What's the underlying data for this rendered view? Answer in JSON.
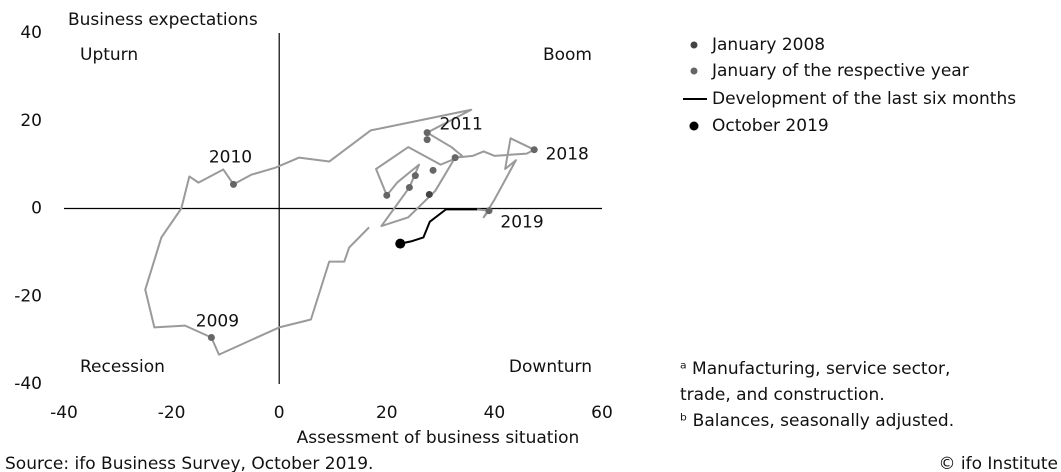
{
  "chart_data": {
    "type": "scatter",
    "title": "Business expectations",
    "xlabel": "Assessment of business situation",
    "xlim": [
      -40,
      60
    ],
    "xticks": [
      -40,
      -20,
      0,
      20,
      40,
      60
    ],
    "ylim": [
      -40,
      40
    ],
    "yticks": [
      -40,
      -20,
      0,
      20,
      40
    ],
    "quadrants": [
      "Upturn",
      "Boom",
      "Recession",
      "Downturn"
    ],
    "trace": {
      "color": "#9a9a9a",
      "x": [
        16.7,
        13,
        12.1,
        9.3,
        5.9,
        0,
        -11.2,
        -12.6,
        -17.5,
        -23.2,
        -24.9,
        -21.9,
        -18.2,
        -16.7,
        -15,
        -10.4,
        -8.5,
        -5.2,
        -0.7,
        3.7,
        9.3,
        17,
        25,
        35.7,
        27.5,
        32,
        34,
        30,
        24,
        18,
        20,
        22,
        26,
        24.2,
        19,
        24,
        29,
        32.7,
        36,
        38,
        40,
        46,
        47.4,
        43,
        42,
        44,
        40,
        38,
        39,
        36.8
      ],
      "y": [
        -4.3,
        -8.9,
        -12.1,
        -12.1,
        -25.3,
        -27.1,
        -33.3,
        -29.4,
        -26.7,
        -27.1,
        -18.5,
        -6.6,
        0,
        7.3,
        5.9,
        8.9,
        5.5,
        7.7,
        9.3,
        11.6,
        10.7,
        17.8,
        19.8,
        22.5,
        17.3,
        14,
        12,
        10,
        14,
        9,
        3,
        6,
        10,
        4.8,
        -4,
        -2,
        4,
        11.6,
        12,
        13,
        12,
        12.5,
        13.4,
        16,
        9,
        11,
        2,
        -2,
        -0.5,
        -0.2
      ]
    },
    "series": [
      {
        "name": "January 2008",
        "color": "#444",
        "x": [
          27.9
        ],
        "y": [
          3.2
        ]
      },
      {
        "name": "January of the respective year",
        "color": "#666",
        "x": [
          -12.6,
          -8.5,
          27.5,
          28.6,
          20,
          32.7,
          24.2,
          25.3,
          27.5,
          47.4,
          39
        ],
        "y": [
          -29.4,
          5.5,
          17.3,
          8.7,
          3,
          11.6,
          4.8,
          7.5,
          15.7,
          13.4,
          -0.5
        ],
        "labels": [
          "2009",
          "2010",
          "2011",
          null,
          null,
          null,
          null,
          null,
          null,
          "2018",
          "2019"
        ]
      },
      {
        "name": "Development of the last six months",
        "color": "#000",
        "x": [
          36.8,
          31,
          28,
          26.8,
          24.5,
          22.5
        ],
        "y": [
          -0.2,
          -0.2,
          -3,
          -6.6,
          -7.5,
          -8
        ]
      },
      {
        "name": "October 2019",
        "color": "#000",
        "x": [
          22.5
        ],
        "y": [
          -8
        ]
      }
    ],
    "footnotes": [
      "ᵃ Manufacturing, service sector,",
      "trade, and construction.",
      "ᵇ Balances, seasonally adjusted."
    ],
    "source": "Source: ifo Business Survey, October 2019.",
    "credit": "© ifo Institute"
  }
}
